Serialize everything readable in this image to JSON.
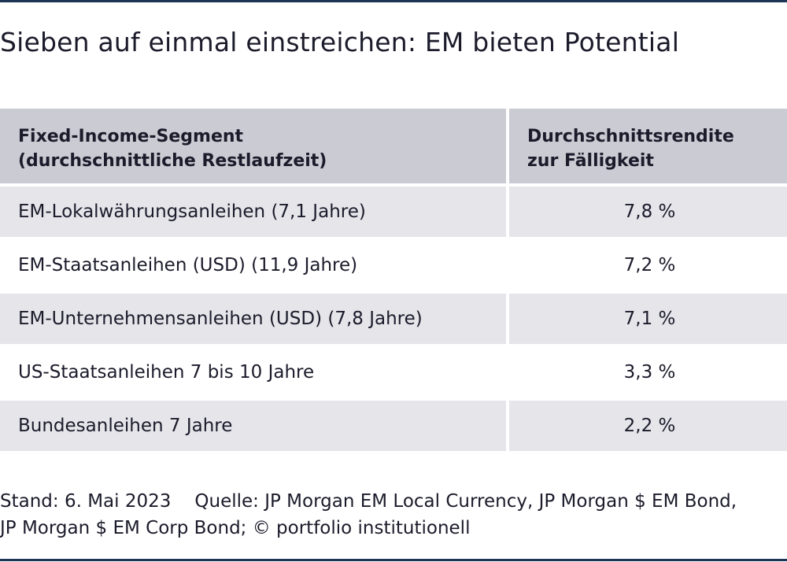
{
  "title": "Sieben auf einmal einstreichen: EM bieten Potential",
  "table": {
    "header": {
      "col1_line1": "Fixed-Income-Segment",
      "col1_line2": "(durchschnittliche Restlaufzeit)",
      "col2_line1": "Durchschnittsrendite",
      "col2_line2": "zur Fälligkeit"
    },
    "rows": [
      {
        "segment": "EM-Lokalwährungsanleihen (7,1 Jahre)",
        "yield": "7,8 %"
      },
      {
        "segment": "EM-Staatsanleihen (USD) (11,9 Jahre)",
        "yield": "7,2 %"
      },
      {
        "segment": "EM-Unternehmensanleihen (USD) (7,8 Jahre)",
        "yield": "7,1 %"
      },
      {
        "segment": "US-Staatsanleihen 7 bis 10 Jahre",
        "yield": "3,3 %"
      },
      {
        "segment": "Bundesanleihen 7 Jahre",
        "yield": "2,2 %"
      }
    ]
  },
  "footer": {
    "stand": "Stand: 6. Mai 2023",
    "quelle_line1": "Quelle: JP Morgan EM Local Currency, JP Morgan $ EM Bond,",
    "quelle_line2": "JP Morgan $ EM Corp Bond; © portfolio institutionell"
  },
  "colors": {
    "rule": "#1c3557",
    "header_bg": "#cbcbd3",
    "row_shaded_bg": "#e5e5ea",
    "text": "#1b1b2b"
  }
}
